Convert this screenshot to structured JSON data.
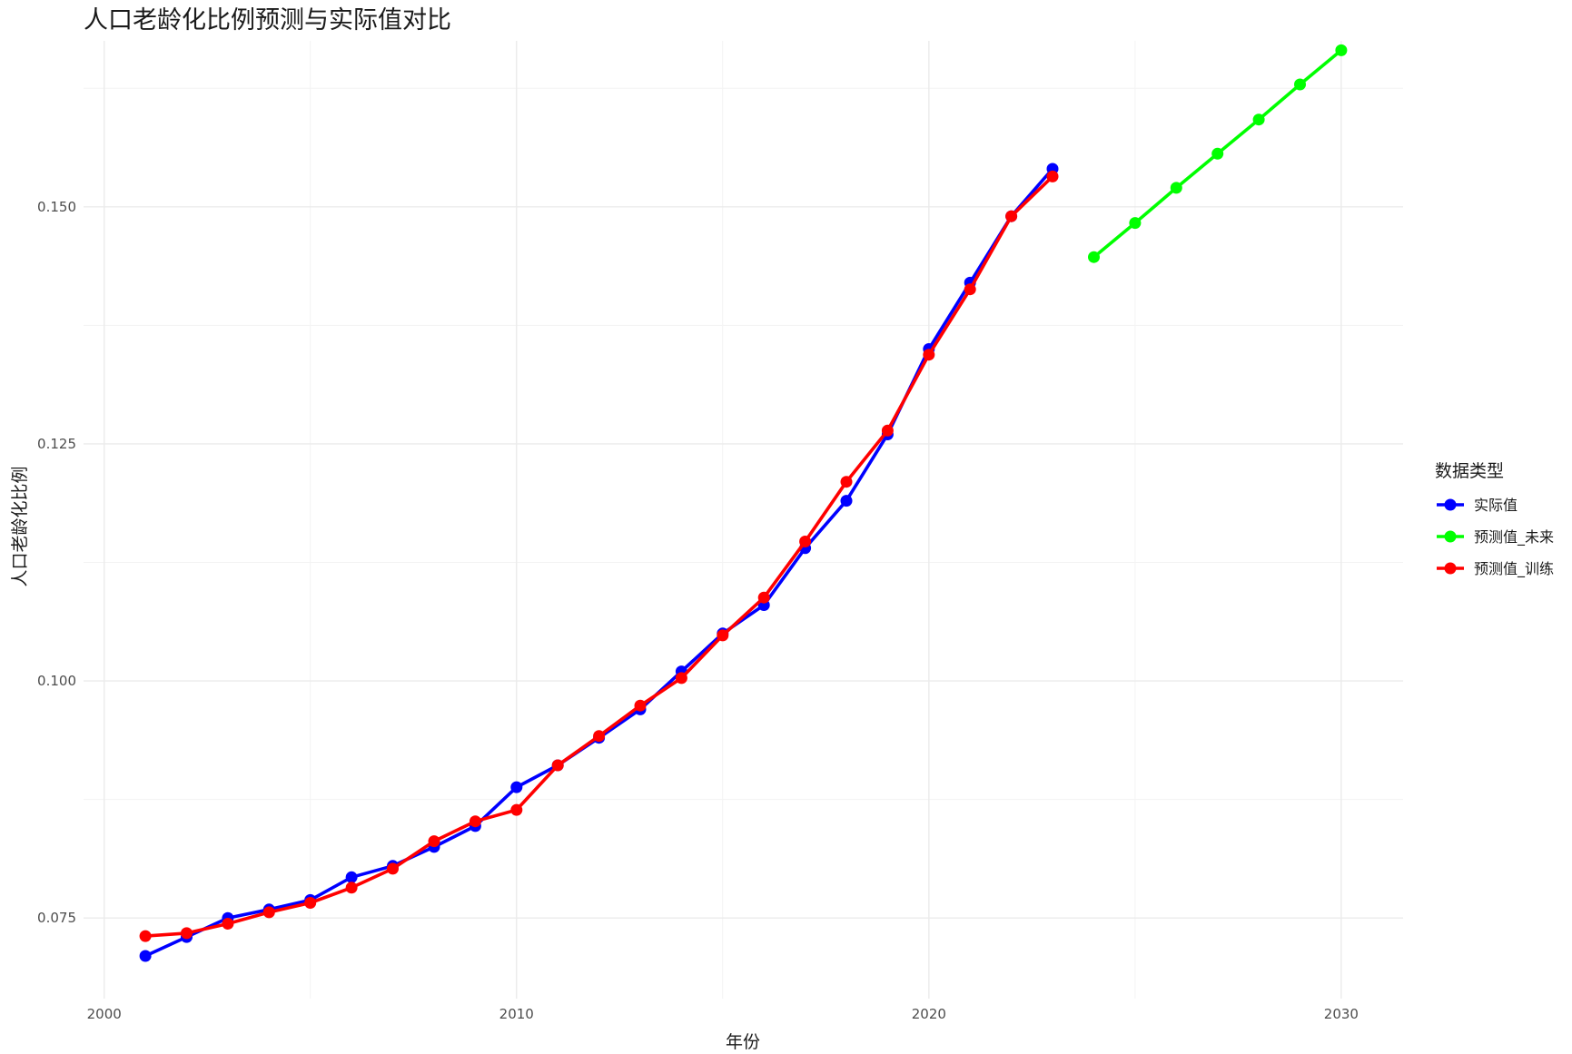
{
  "chart_data": {
    "type": "line",
    "title": "人口老龄化比例预测与实际值对比",
    "xlabel": "年份",
    "ylabel": "人口老龄化比例",
    "xlim": [
      1999.5,
      2031.5
    ],
    "ylim": [
      0.0665,
      0.1675
    ],
    "x_ticks": [
      2000,
      2010,
      2020,
      2030
    ],
    "x_tick_labels": [
      "2000",
      "2010",
      "2020",
      "2030"
    ],
    "y_ticks": [
      0.075,
      0.1,
      0.125,
      0.15
    ],
    "y_tick_labels": [
      "0.075",
      "0.100",
      "0.125",
      "0.150"
    ],
    "grid": true,
    "legend": {
      "title": "数据类型",
      "position": "right"
    },
    "series": [
      {
        "name": "实际值",
        "color": "#0000ff",
        "x": [
          2001,
          2002,
          2003,
          2004,
          2005,
          2006,
          2007,
          2008,
          2009,
          2010,
          2011,
          2012,
          2013,
          2014,
          2015,
          2016,
          2017,
          2018,
          2019,
          2020,
          2021,
          2022,
          2023
        ],
        "y": [
          0.071,
          0.073,
          0.075,
          0.0759,
          0.0769,
          0.0793,
          0.0805,
          0.0825,
          0.0847,
          0.0888,
          0.0911,
          0.094,
          0.097,
          0.101,
          0.105,
          0.108,
          0.114,
          0.119,
          0.126,
          0.135,
          0.142,
          0.149,
          0.154
        ]
      },
      {
        "name": "预测值_未来",
        "color": "#00ff00",
        "x": [
          2024,
          2025,
          2026,
          2027,
          2028,
          2029,
          2030
        ],
        "y": [
          0.1447,
          0.1483,
          0.152,
          0.1556,
          0.1592,
          0.1629,
          0.1665
        ]
      },
      {
        "name": "预测值_训练",
        "color": "#ff0000",
        "x": [
          2001,
          2002,
          2003,
          2004,
          2005,
          2006,
          2007,
          2008,
          2009,
          2010,
          2011,
          2012,
          2013,
          2014,
          2015,
          2016,
          2017,
          2018,
          2019,
          2020,
          2021,
          2022,
          2023
        ],
        "y": [
          0.0731,
          0.0734,
          0.0744,
          0.0756,
          0.0766,
          0.0782,
          0.0802,
          0.0831,
          0.0852,
          0.0864,
          0.0911,
          0.0942,
          0.0974,
          0.1003,
          0.1048,
          0.1088,
          0.1147,
          0.121,
          0.1264,
          0.1344,
          0.1413,
          0.149,
          0.1532
        ]
      }
    ]
  }
}
